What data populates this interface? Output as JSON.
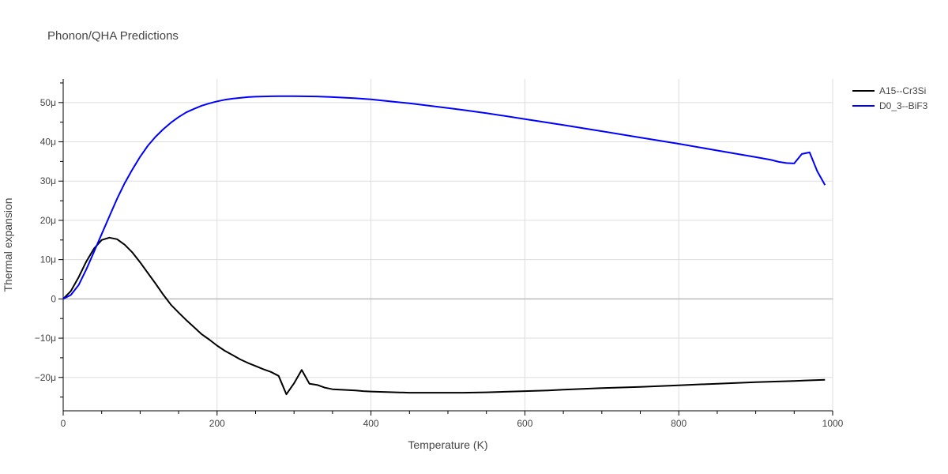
{
  "chart_data": {
    "type": "line",
    "title": "Phonon/QHA Predictions",
    "xlabel": "Temperature (K)",
    "ylabel": "Thermal expansion",
    "xlim": [
      0,
      1000
    ],
    "ylim": [
      -28.5,
      56
    ],
    "x_ticks": [
      0,
      200,
      400,
      600,
      800,
      1000
    ],
    "y_ticks": [
      -20,
      -10,
      0,
      10,
      20,
      30,
      40,
      50
    ],
    "y_tick_labels": [
      "−20μ",
      "−10μ",
      "0",
      "10μ",
      "20μ",
      "30μ",
      "40μ",
      "50μ"
    ],
    "grid": true,
    "legend_position": "top-right",
    "series": [
      {
        "name": "A15--Cr3Si",
        "color": "#000000",
        "x": [
          0,
          10,
          20,
          30,
          40,
          50,
          60,
          70,
          80,
          90,
          100,
          110,
          120,
          130,
          140,
          150,
          160,
          170,
          180,
          190,
          200,
          210,
          220,
          230,
          240,
          250,
          260,
          270,
          280,
          290,
          300,
          310,
          320,
          330,
          340,
          350,
          360,
          370,
          380,
          390,
          400,
          450,
          500,
          520,
          550,
          600,
          630,
          650,
          700,
          750,
          800,
          850,
          900,
          950,
          990
        ],
        "y": [
          0,
          2,
          5.5,
          9.5,
          12.8,
          15,
          15.6,
          15.2,
          13.8,
          11.8,
          9.3,
          6.6,
          3.9,
          1.1,
          -1.5,
          -3.5,
          -5.4,
          -7.2,
          -9.0,
          -10.4,
          -11.9,
          -13.2,
          -14.3,
          -15.4,
          -16.3,
          -17.1,
          -17.9,
          -18.6,
          -19.6,
          -24.3,
          -21.5,
          -18.1,
          -21.6,
          -21.9,
          -22.6,
          -23.0,
          -23.1,
          -23.2,
          -23.3,
          -23.5,
          -23.6,
          -23.9,
          -23.9,
          -23.9,
          -23.8,
          -23.5,
          -23.3,
          -23.1,
          -22.7,
          -22.4,
          -22.0,
          -21.6,
          -21.2,
          -20.9,
          -20.6
        ]
      },
      {
        "name": "D0_3--BiF3",
        "color": "#0000ff",
        "x": [
          0,
          10,
          20,
          30,
          40,
          50,
          60,
          70,
          80,
          90,
          100,
          110,
          120,
          130,
          140,
          150,
          160,
          170,
          180,
          190,
          200,
          210,
          220,
          230,
          240,
          250,
          260,
          270,
          280,
          290,
          300,
          330,
          350,
          380,
          400,
          450,
          500,
          520,
          550,
          600,
          650,
          700,
          750,
          800,
          850,
          900,
          920,
          930,
          940,
          950,
          960,
          970,
          980,
          990
        ],
        "y": [
          0,
          1,
          3.5,
          7.5,
          12,
          16.5,
          21,
          25.5,
          29.5,
          33,
          36.2,
          39,
          41.3,
          43.2,
          44.9,
          46.3,
          47.5,
          48.4,
          49.2,
          49.8,
          50.3,
          50.7,
          51.0,
          51.2,
          51.4,
          51.5,
          51.55,
          51.6,
          51.62,
          51.63,
          51.62,
          51.55,
          51.4,
          51.1,
          50.8,
          49.8,
          48.6,
          48.1,
          47.3,
          45.8,
          44.3,
          42.7,
          41.1,
          39.5,
          37.8,
          36.1,
          35.4,
          34.9,
          34.6,
          34.5,
          36.9,
          37.3,
          32.5,
          29.0
        ]
      }
    ]
  }
}
